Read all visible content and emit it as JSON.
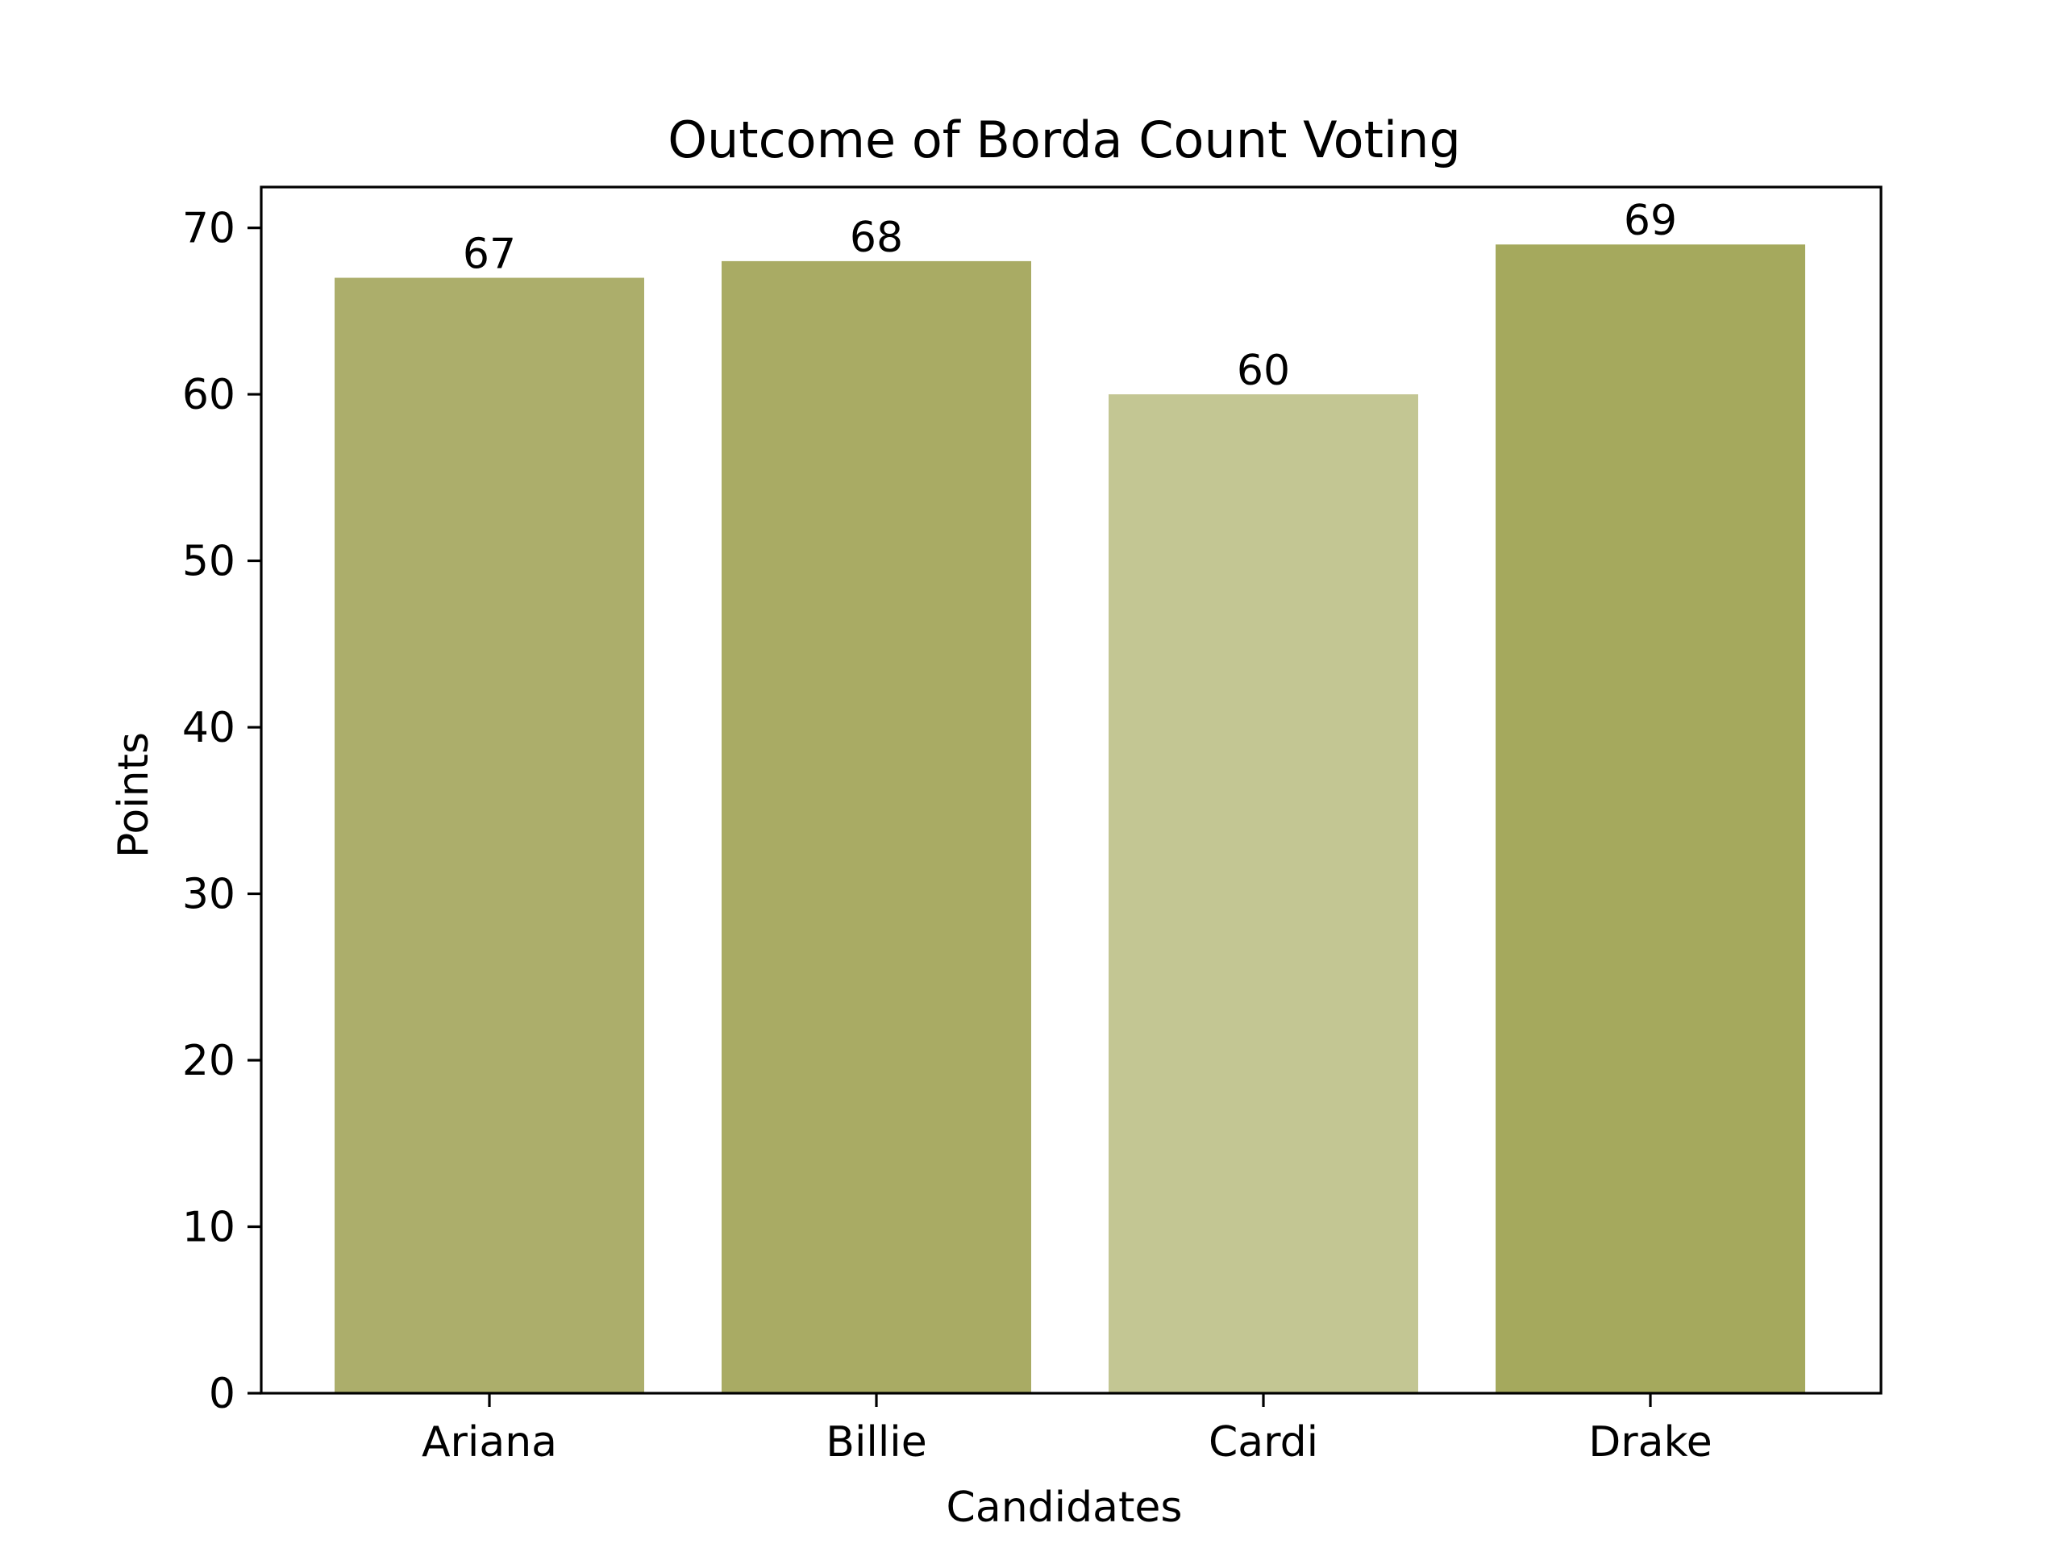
{
  "chart_data": {
    "type": "bar",
    "title": "Outcome of Borda Count Voting",
    "xlabel": "Candidates",
    "ylabel": "Points",
    "categories": [
      "Ariana",
      "Billie",
      "Cardi",
      "Drake"
    ],
    "values": [
      67,
      68,
      60,
      69
    ],
    "bar_labels": [
      "67",
      "68",
      "60",
      "69"
    ],
    "colors": [
      "#acae6b",
      "#a9ab64",
      "#c3c693",
      "#a5a95d"
    ],
    "ylim": [
      0,
      72.45
    ],
    "yticks": [
      0,
      10,
      20,
      30,
      40,
      50,
      60,
      70
    ],
    "grid": false,
    "legend": null
  }
}
